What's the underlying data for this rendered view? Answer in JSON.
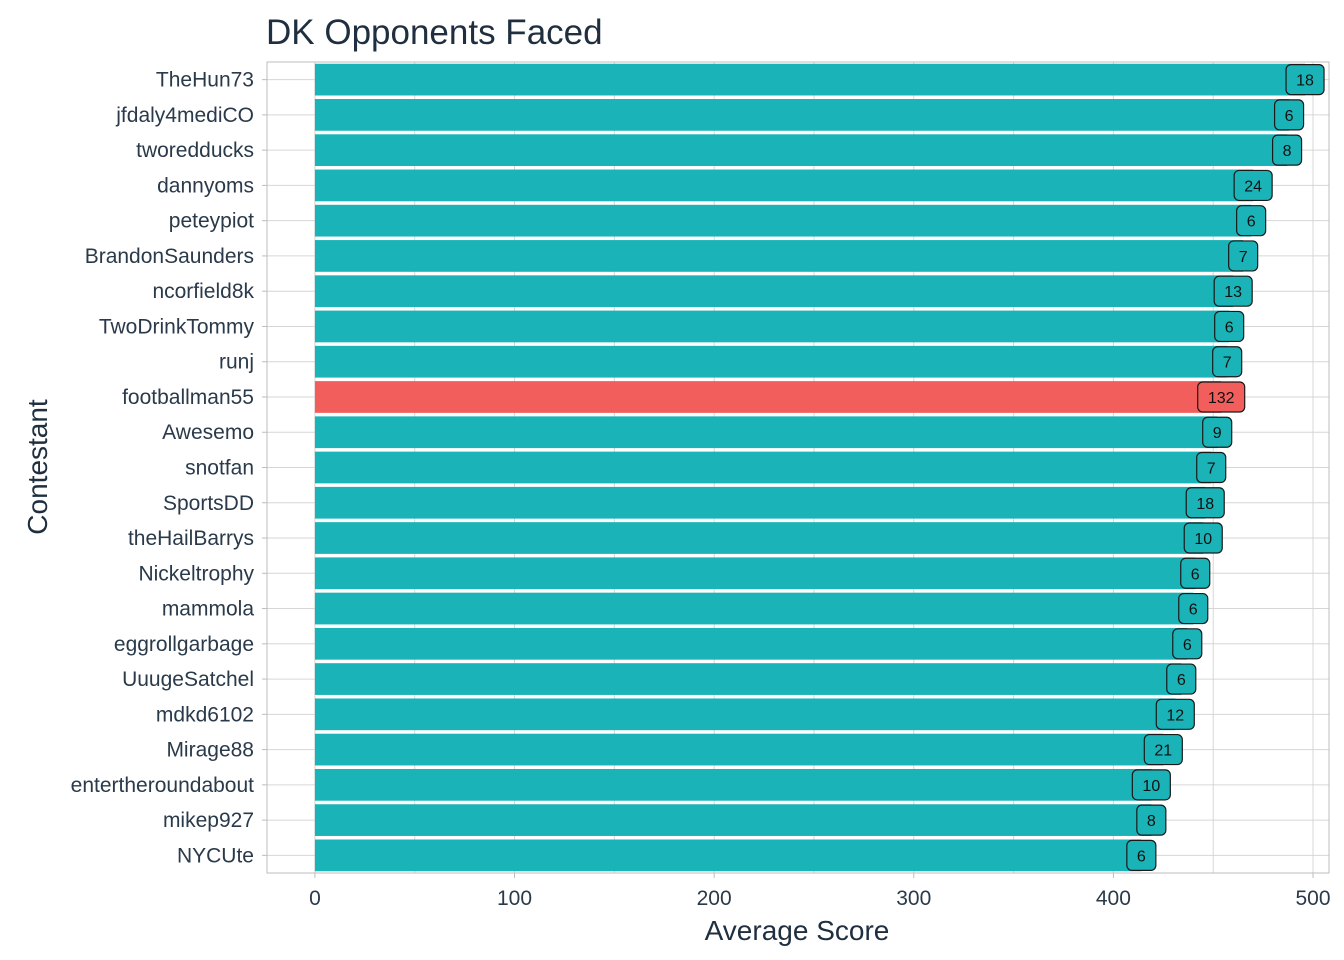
{
  "chart_data": {
    "type": "bar",
    "orientation": "horizontal",
    "title": "DK Opponents Faced",
    "xlabel": "Average Score",
    "ylabel": "Contestant",
    "xlim": [
      -24,
      508
    ],
    "xticks": [
      0,
      100,
      200,
      300,
      400,
      500
    ],
    "grid": true,
    "colors": {
      "default": "#1ab4b8",
      "highlight": "#f25e5b"
    },
    "highlight": "footballman55",
    "categories": [
      "TheHun73",
      "jfdaly4mediCO",
      "tworedducks",
      "dannyoms",
      "peteypiot",
      "BrandonSaunders",
      "ncorfield8k",
      "TwoDrinkTommy",
      "runj",
      "footballman55",
      "Awesemo",
      "snotfan",
      "SportsDD",
      "theHailBarrys",
      "Nickeltrophy",
      "mammola",
      "eggrollgarbage",
      "UuugeSatchel",
      "mdkd6102",
      "Mirage88",
      "entertheroundabout",
      "mikep927",
      "NYCUte"
    ],
    "values": [
      496,
      488,
      487,
      470,
      469,
      465,
      460,
      458,
      457,
      454,
      452,
      449,
      446,
      445,
      441,
      440,
      437,
      434,
      431,
      425,
      419,
      419,
      414
    ],
    "labels": [
      "18",
      "6",
      "8",
      "24",
      "6",
      "7",
      "13",
      "6",
      "7",
      "132",
      "9",
      "7",
      "18",
      "10",
      "6",
      "6",
      "6",
      "6",
      "12",
      "21",
      "10",
      "8",
      "6"
    ]
  }
}
